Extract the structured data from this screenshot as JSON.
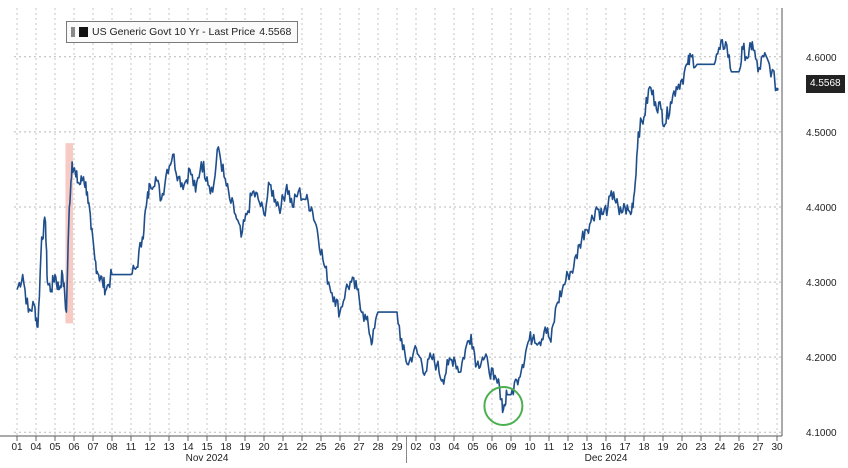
{
  "chart_data": {
    "type": "line",
    "legend": {
      "label": "US Generic Govt 10 Yr - Last Price",
      "value": "4.5568",
      "placement": "top-left"
    },
    "last_price_label": "4.5568",
    "line_color": "#1f4e8c",
    "highlight_color": "#f4b8b0",
    "circle_color": "#4caf50",
    "ylim": [
      4.095,
      4.665
    ],
    "yticks": [
      {
        "v": 4.1,
        "label": "4.1000"
      },
      {
        "v": 4.2,
        "label": "4.2000"
      },
      {
        "v": 4.3,
        "label": "4.3000"
      },
      {
        "v": 4.4,
        "label": "4.4000"
      },
      {
        "v": 4.5,
        "label": "4.5000"
      },
      {
        "v": 4.6,
        "label": "4.6000"
      }
    ],
    "grid": true,
    "xticks": [
      "01",
      "04",
      "05",
      "06",
      "07",
      "08",
      "11",
      "12",
      "13",
      "14",
      "15",
      "18",
      "19",
      "20",
      "21",
      "22",
      "25",
      "26",
      "27",
      "28",
      "29",
      "02",
      "03",
      "04",
      "05",
      "06",
      "09",
      "10",
      "11",
      "12",
      "13",
      "16",
      "17",
      "18",
      "19",
      "20",
      "23",
      "24",
      "26",
      "27",
      "30"
    ],
    "month_labels": [
      {
        "label": "Nov 2024",
        "at_tick": 10
      },
      {
        "label": "Dec 2024",
        "at_tick": 31
      }
    ],
    "month_boundary_tick": 20.5,
    "highlight_span": {
      "from_tick": 2.55,
      "to_tick": 2.95
    },
    "circle_annotation": {
      "tick": 25.6,
      "value": 4.135
    },
    "series": [
      {
        "values": [
          [
            0.0,
            4.29
          ],
          [
            0.3,
            4.31
          ],
          [
            0.6,
            4.26
          ],
          [
            0.9,
            4.27
          ],
          [
            1.1,
            4.24
          ],
          [
            1.3,
            4.36
          ],
          [
            1.5,
            4.38
          ],
          [
            1.6,
            4.3
          ],
          [
            1.8,
            4.29
          ],
          [
            2.0,
            4.31
          ],
          [
            2.2,
            4.29
          ],
          [
            2.4,
            4.31
          ],
          [
            2.6,
            4.26
          ],
          [
            2.75,
            4.4
          ],
          [
            2.9,
            4.46
          ],
          [
            3.1,
            4.44
          ],
          [
            3.3,
            4.43
          ],
          [
            3.5,
            4.44
          ],
          [
            3.7,
            4.42
          ],
          [
            3.9,
            4.37
          ],
          [
            4.1,
            4.33
          ],
          [
            4.3,
            4.31
          ],
          [
            4.5,
            4.3
          ],
          [
            4.7,
            4.29
          ],
          [
            5.0,
            4.31
          ],
          [
            5.5,
            4.31
          ],
          [
            6.0,
            4.31
          ],
          [
            6.3,
            4.32
          ],
          [
            6.6,
            4.36
          ],
          [
            6.8,
            4.4
          ],
          [
            7.0,
            4.43
          ],
          [
            7.3,
            4.44
          ],
          [
            7.6,
            4.41
          ],
          [
            7.9,
            4.45
          ],
          [
            8.2,
            4.47
          ],
          [
            8.5,
            4.44
          ],
          [
            8.8,
            4.43
          ],
          [
            9.1,
            4.45
          ],
          [
            9.4,
            4.42
          ],
          [
            9.7,
            4.46
          ],
          [
            10.0,
            4.44
          ],
          [
            10.3,
            4.42
          ],
          [
            10.6,
            4.48
          ],
          [
            10.9,
            4.44
          ],
          [
            11.2,
            4.41
          ],
          [
            11.5,
            4.39
          ],
          [
            11.8,
            4.36
          ],
          [
            12.1,
            4.39
          ],
          [
            12.4,
            4.42
          ],
          [
            12.7,
            4.41
          ],
          [
            13.0,
            4.39
          ],
          [
            13.3,
            4.43
          ],
          [
            13.6,
            4.41
          ],
          [
            13.9,
            4.4
          ],
          [
            14.2,
            4.43
          ],
          [
            14.5,
            4.4
          ],
          [
            14.8,
            4.42
          ],
          [
            15.2,
            4.41
          ],
          [
            15.5,
            4.4
          ],
          [
            15.8,
            4.37
          ],
          [
            16.1,
            4.33
          ],
          [
            16.4,
            4.3
          ],
          [
            16.7,
            4.28
          ],
          [
            17.0,
            4.26
          ],
          [
            17.3,
            4.29
          ],
          [
            17.6,
            4.3
          ],
          [
            17.9,
            4.29
          ],
          [
            18.2,
            4.26
          ],
          [
            18.5,
            4.24
          ],
          [
            18.7,
            4.22
          ],
          [
            19.0,
            4.26
          ],
          [
            19.5,
            4.26
          ],
          [
            20.0,
            4.26
          ],
          [
            20.3,
            4.21
          ],
          [
            20.6,
            4.19
          ],
          [
            20.9,
            4.21
          ],
          [
            21.2,
            4.2
          ],
          [
            21.5,
            4.18
          ],
          [
            21.8,
            4.2
          ],
          [
            22.1,
            4.19
          ],
          [
            22.4,
            4.17
          ],
          [
            22.7,
            4.19
          ],
          [
            23.0,
            4.2
          ],
          [
            23.3,
            4.18
          ],
          [
            23.6,
            4.21
          ],
          [
            23.9,
            4.23
          ],
          [
            24.2,
            4.19
          ],
          [
            24.5,
            4.2
          ],
          [
            24.8,
            4.19
          ],
          [
            25.1,
            4.17
          ],
          [
            25.4,
            4.16
          ],
          [
            25.6,
            4.13
          ],
          [
            25.8,
            4.15
          ],
          [
            26.0,
            4.15
          ],
          [
            26.3,
            4.17
          ],
          [
            26.6,
            4.19
          ],
          [
            26.9,
            4.22
          ],
          [
            27.2,
            4.23
          ],
          [
            27.5,
            4.22
          ],
          [
            27.8,
            4.24
          ],
          [
            28.1,
            4.22
          ],
          [
            28.4,
            4.27
          ],
          [
            28.7,
            4.29
          ],
          [
            29.0,
            4.31
          ],
          [
            29.3,
            4.32
          ],
          [
            29.6,
            4.35
          ],
          [
            29.9,
            4.37
          ],
          [
            30.2,
            4.38
          ],
          [
            30.5,
            4.4
          ],
          [
            30.8,
            4.39
          ],
          [
            31.1,
            4.4
          ],
          [
            31.4,
            4.42
          ],
          [
            31.7,
            4.39
          ],
          [
            32.0,
            4.4
          ],
          [
            32.3,
            4.39
          ],
          [
            32.5,
            4.42
          ],
          [
            32.7,
            4.5
          ],
          [
            33.0,
            4.52
          ],
          [
            33.3,
            4.56
          ],
          [
            33.6,
            4.54
          ],
          [
            33.9,
            4.53
          ],
          [
            34.1,
            4.51
          ],
          [
            34.4,
            4.54
          ],
          [
            34.7,
            4.56
          ],
          [
            35.0,
            4.57
          ],
          [
            35.3,
            4.59
          ],
          [
            35.5,
            4.6
          ],
          [
            35.8,
            4.59
          ],
          [
            36.1,
            4.59
          ],
          [
            36.4,
            4.59
          ],
          [
            36.7,
            4.59
          ],
          [
            37.0,
            4.61
          ],
          [
            37.3,
            4.62
          ],
          [
            37.6,
            4.58
          ],
          [
            38.0,
            4.58
          ],
          [
            38.2,
            4.61
          ],
          [
            38.5,
            4.6
          ],
          [
            38.7,
            4.62
          ],
          [
            39.0,
            4.58
          ],
          [
            39.3,
            4.6
          ],
          [
            39.6,
            4.59
          ],
          [
            40.0,
            4.5568
          ]
        ]
      }
    ]
  }
}
